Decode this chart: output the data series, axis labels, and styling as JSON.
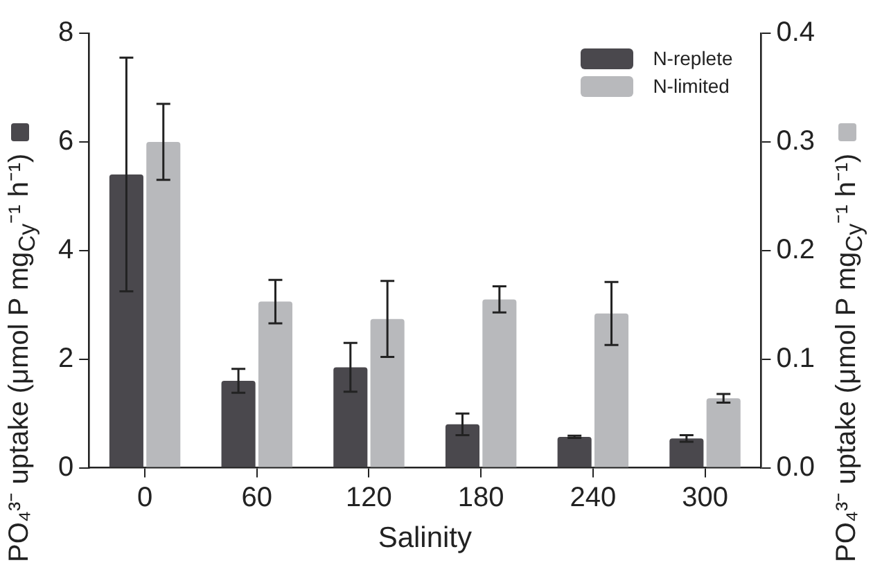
{
  "chart_data": {
    "type": "bar",
    "xlabel": "Salinity",
    "ylabel": "PO₄³⁻ uptake (μmol P mg$_{Cy}$⁻¹ h⁻¹)",
    "y2label": "PO₄³⁻ uptake (μmol P mg$_{Cy}$⁻¹ h⁻¹)",
    "categories": [
      "0",
      "60",
      "120",
      "180",
      "240",
      "300"
    ],
    "series": [
      {
        "name": "N-replete",
        "color": "#4a484d",
        "values": [
          5.4,
          1.6,
          1.85,
          0.8,
          0.57,
          0.54
        ],
        "errors": [
          2.15,
          0.22,
          0.45,
          0.2,
          0.02,
          0.06
        ]
      },
      {
        "name": "N-limited",
        "color": "#b8b9bc",
        "axis": "y2",
        "values": [
          0.3,
          0.153,
          0.137,
          0.155,
          0.142,
          0.064
        ],
        "errors": [
          0.035,
          0.02,
          0.035,
          0.012,
          0.029,
          0.004
        ]
      }
    ],
    "ylim": [
      0,
      8
    ],
    "yticks": [
      0,
      2,
      4,
      6,
      8
    ],
    "y2lim": [
      0,
      0.4
    ],
    "y2ticks": [
      {
        "value": 0,
        "label": "0.0"
      },
      {
        "value": 0.1,
        "label": "0.1"
      },
      {
        "value": 0.2,
        "label": "0.2"
      },
      {
        "value": 0.3,
        "label": "0.3"
      },
      {
        "value": 0.4,
        "label": "0.4"
      }
    ],
    "grid": false,
    "legend": "top right"
  }
}
